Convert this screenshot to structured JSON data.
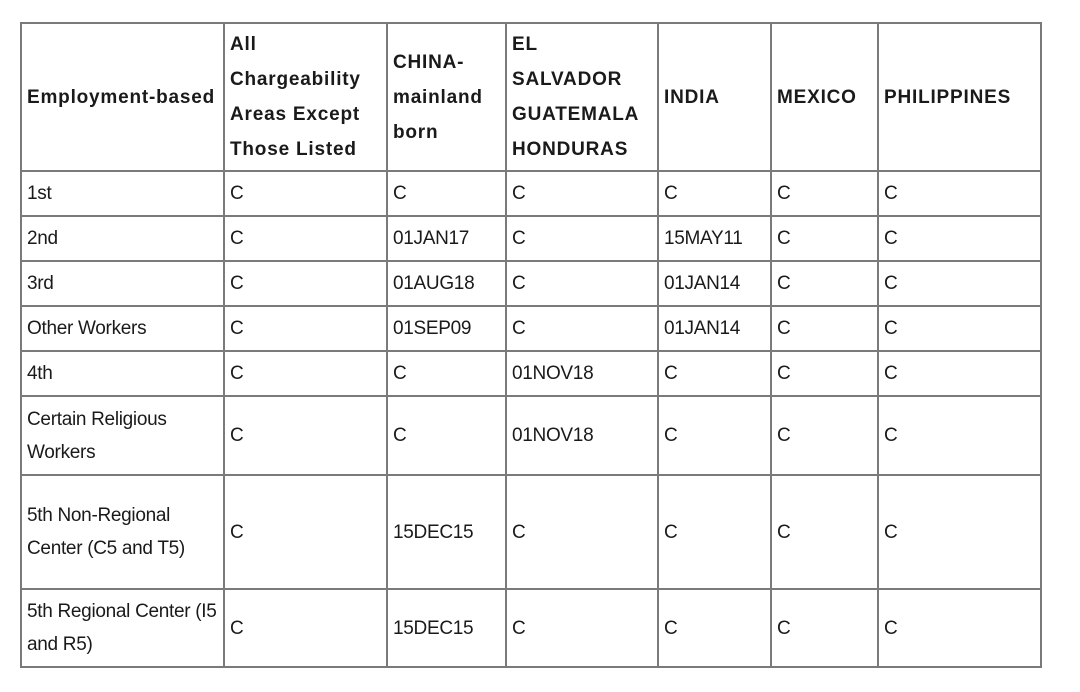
{
  "table": {
    "headers": [
      "Employment-based",
      "All Chargeability Areas Except Those Listed",
      "CHINA-mainland born",
      "EL SALVADOR GUATEMALA HONDURAS",
      "INDIA",
      "MEXICO",
      "PHILIPPINES"
    ],
    "rows": [
      [
        "1st",
        "C",
        "C",
        "C",
        "C",
        "C",
        "C"
      ],
      [
        "2nd",
        "C",
        "01JAN17",
        "C",
        "15MAY11",
        "C",
        "C"
      ],
      [
        "3rd",
        "C",
        "01AUG18",
        "C",
        "01JAN14",
        "C",
        "C"
      ],
      [
        "Other Workers",
        "C",
        "01SEP09",
        "C",
        "01JAN14",
        "C",
        "C"
      ],
      [
        "4th",
        "C",
        "C",
        "01NOV18",
        "C",
        "C",
        "C"
      ],
      [
        "Certain Religious Workers",
        "C",
        "C",
        "01NOV18",
        "C",
        "C",
        "C"
      ],
      [
        "5th Non-Regional Center (C5 and T5)",
        "C",
        "15DEC15",
        "C",
        "C",
        "C",
        "C"
      ],
      [
        "5th Regional Center (I5 and R5)",
        "C",
        "15DEC15",
        "C",
        "C",
        "C",
        "C"
      ]
    ]
  }
}
